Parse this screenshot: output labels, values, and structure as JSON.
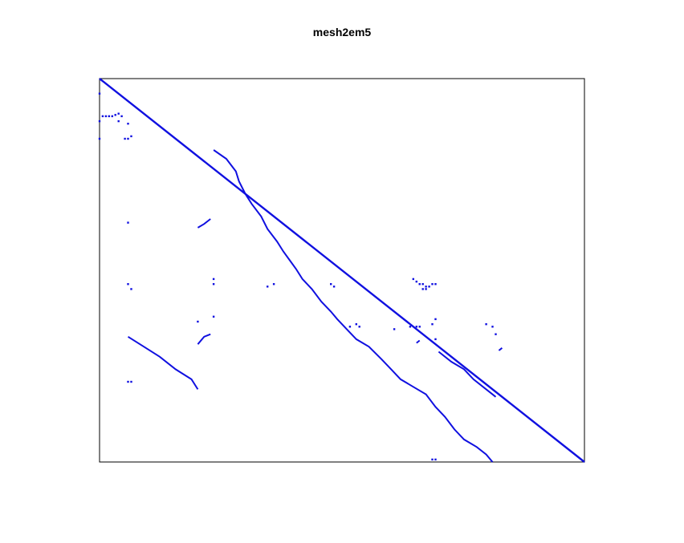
{
  "chart_data": {
    "type": "scatter",
    "title": "mesh2em5",
    "xlabel": "",
    "ylabel": "",
    "xlim": [
      0,
      306
    ],
    "ylim": [
      0,
      306
    ],
    "y_reversed": true,
    "axis_ticks": false,
    "grid": false,
    "legend": "none",
    "marker_color": "#1010e0",
    "frame_color": "#000000",
    "diagonal": {
      "from": 0,
      "to": 306
    },
    "segments": [
      {
        "name": "coupling-band",
        "points": [
          [
            72,
            57
          ],
          [
            80,
            64
          ],
          [
            86,
            74
          ],
          [
            88,
            82
          ],
          [
            92,
            92
          ],
          [
            96,
            100
          ],
          [
            102,
            110
          ],
          [
            106,
            120
          ],
          [
            112,
            130
          ],
          [
            116,
            138
          ],
          [
            120,
            145
          ],
          [
            124,
            152
          ],
          [
            128,
            160
          ],
          [
            134,
            168
          ],
          [
            140,
            178
          ],
          [
            146,
            186
          ],
          [
            150,
            192
          ],
          [
            156,
            200
          ],
          [
            162,
            208
          ],
          [
            170,
            214
          ],
          [
            178,
            224
          ],
          [
            184,
            232
          ],
          [
            190,
            240
          ],
          [
            198,
            246
          ],
          [
            206,
            252
          ],
          [
            212,
            262
          ],
          [
            218,
            270
          ],
          [
            224,
            280
          ],
          [
            230,
            288
          ],
          [
            238,
            294
          ],
          [
            244,
            300
          ],
          [
            248,
            306
          ]
        ]
      },
      {
        "name": "lower-left-band",
        "points": [
          [
            18,
            206
          ],
          [
            28,
            214
          ],
          [
            38,
            222
          ],
          [
            48,
            232
          ],
          [
            58,
            240
          ],
          [
            62,
            248
          ]
        ]
      },
      {
        "name": "left-arc-upper",
        "points": [
          [
            62,
            119
          ],
          [
            66,
            116
          ],
          [
            70,
            112
          ]
        ]
      },
      {
        "name": "left-arc-lower",
        "points": [
          [
            62,
            212
          ],
          [
            66,
            206
          ],
          [
            70,
            204
          ]
        ]
      },
      {
        "name": "mid-arc",
        "points": [
          [
            200,
            211
          ],
          [
            202,
            209
          ]
        ]
      },
      {
        "name": "right-arc",
        "points": [
          [
            252,
            217
          ],
          [
            254,
            215
          ]
        ]
      },
      {
        "name": "lower-right-band",
        "points": [
          [
            214,
            218
          ],
          [
            222,
            226
          ],
          [
            230,
            232
          ],
          [
            236,
            240
          ],
          [
            242,
            246
          ],
          [
            250,
            254
          ]
        ]
      }
    ],
    "points": [
      [
        0,
        12
      ],
      [
        0,
        34
      ],
      [
        0,
        48
      ],
      [
        2,
        30
      ],
      [
        4,
        30
      ],
      [
        6,
        30
      ],
      [
        8,
        30
      ],
      [
        10,
        29
      ],
      [
        12,
        28
      ],
      [
        14,
        30
      ],
      [
        12,
        34
      ],
      [
        18,
        36
      ],
      [
        16,
        48
      ],
      [
        18,
        48
      ],
      [
        20,
        46
      ],
      [
        18,
        115
      ],
      [
        18,
        164
      ],
      [
        20,
        168
      ],
      [
        18,
        242
      ],
      [
        20,
        242
      ],
      [
        72,
        160
      ],
      [
        72,
        164
      ],
      [
        106,
        166
      ],
      [
        146,
        164
      ],
      [
        148,
        166
      ],
      [
        110,
        164
      ],
      [
        158,
        198
      ],
      [
        162,
        196
      ],
      [
        164,
        198
      ],
      [
        200,
        198
      ],
      [
        202,
        198
      ],
      [
        196,
        198
      ],
      [
        186,
        200
      ],
      [
        210,
        196
      ],
      [
        212,
        192
      ],
      [
        212,
        208
      ],
      [
        210,
        304
      ],
      [
        212,
        304
      ],
      [
        244,
        196
      ],
      [
        248,
        198
      ],
      [
        250,
        204
      ],
      [
        62,
        194
      ],
      [
        72,
        190
      ],
      [
        202,
        164
      ],
      [
        204,
        164
      ],
      [
        206,
        166
      ],
      [
        208,
        166
      ],
      [
        204,
        168
      ],
      [
        206,
        168
      ],
      [
        200,
        162
      ],
      [
        198,
        160
      ],
      [
        210,
        164
      ],
      [
        212,
        164
      ]
    ]
  }
}
